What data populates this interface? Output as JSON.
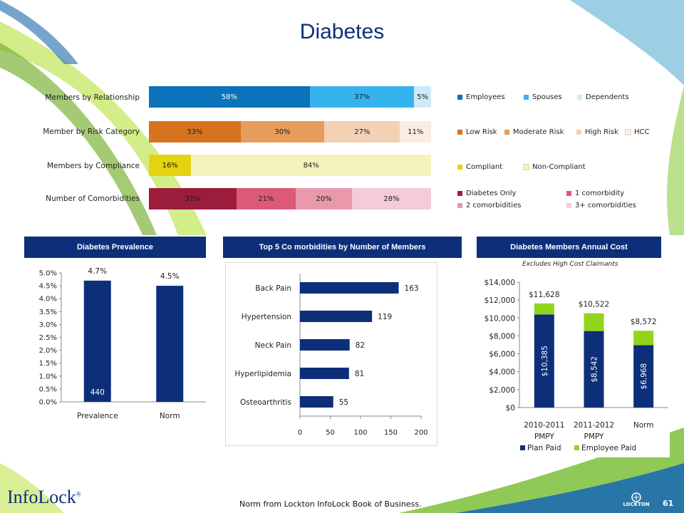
{
  "title": "Diabetes",
  "chart_data": [
    {
      "type": "bar",
      "orientation": "horizontal-stacked-100",
      "rows": [
        {
          "label": "Members by Relationship",
          "segments": [
            {
              "name": "Employees",
              "value": 58,
              "text": "58%",
              "color": "#0b73bb"
            },
            {
              "name": "Spouses",
              "value": 37,
              "text": "37%",
              "color": "#35b3ef"
            },
            {
              "name": "Dependents",
              "value": 5,
              "text": "5%",
              "color": "#cdeaf8"
            }
          ]
        },
        {
          "label": "Member by Risk Category",
          "segments": [
            {
              "name": "Low Risk",
              "value": 33,
              "text": "33%",
              "color": "#d7731f"
            },
            {
              "name": "Moderate Risk",
              "value": 30,
              "text": "30%",
              "color": "#e69c5b"
            },
            {
              "name": "High Risk",
              "value": 27,
              "text": "27%",
              "color": "#f3d1b4"
            },
            {
              "name": "HCC",
              "value": 11,
              "text": "11%",
              "color": "#fbece0"
            }
          ]
        },
        {
          "label": "Members by Compliance",
          "segments": [
            {
              "name": "Compliant",
              "value": 16,
              "text": "16%",
              "color": "#e4d213"
            },
            {
              "name": "Non-Compliant",
              "value": 84,
              "text": "84%",
              "color": "#f6f2bd"
            }
          ]
        },
        {
          "label": "Number of Comorbidities",
          "segments": [
            {
              "name": "Diabetes Only",
              "value": 32,
              "text": "32%",
              "color": "#9b1d3b"
            },
            {
              "name": "1 comorbidity",
              "value": 21,
              "text": "21%",
              "color": "#dc5a78"
            },
            {
              "name": "2 comorbidities",
              "value": 20,
              "text": "20%",
              "color": "#e999ab"
            },
            {
              "name": "3+ comorbidities",
              "value": 28,
              "text": "28%",
              "color": "#f4cbd6"
            }
          ]
        }
      ]
    },
    {
      "type": "bar",
      "title": "Diabetes Prevalence",
      "categories": [
        "Prevalence",
        "Norm"
      ],
      "values": [
        4.7,
        4.5
      ],
      "value_labels": [
        "4.7%",
        "4.5%"
      ],
      "inner_label": "440",
      "ylim": [
        0,
        5
      ],
      "yticks": [
        "0.0%",
        "0.5%",
        "1.0%",
        "1.5%",
        "2.0%",
        "2.5%",
        "3.0%",
        "3.5%",
        "4.0%",
        "4.5%",
        "5.0%"
      ],
      "color": "#0d2f7a"
    },
    {
      "type": "bar",
      "orientation": "horizontal",
      "title": "Top 5 Co morbidities by Number of Members",
      "categories": [
        "Back Pain",
        "Hypertension",
        "Neck Pain",
        "Hyperlipidemia",
        "Osteoarthritis"
      ],
      "values": [
        163,
        119,
        82,
        81,
        55
      ],
      "xlim": [
        0,
        200
      ],
      "xticks": [
        "0",
        "50",
        "100",
        "150",
        "200"
      ],
      "color": "#0d2f7a"
    },
    {
      "type": "bar",
      "orientation": "vertical-stacked",
      "title": "Diabetes Members Annual Cost",
      "subtitle": "Excludes High Cost Claimants",
      "categories": [
        "2010-2011 PMPY",
        "2011-2012 PMPY",
        "Norm"
      ],
      "category_lines": [
        [
          "2010-2011",
          "PMPY"
        ],
        [
          "2011-2012",
          "PMPY"
        ],
        [
          "Norm",
          ""
        ]
      ],
      "series": [
        {
          "name": "Plan Paid",
          "values": [
            10385,
            8542,
            6968
          ],
          "labels": [
            "$10,385",
            "$8,542",
            "$6,968"
          ],
          "color": "#0d2f7a"
        },
        {
          "name": "Employee Paid",
          "values": [
            1243,
            1980,
            1604
          ],
          "color": "#92d41c"
        }
      ],
      "totals": [
        11628,
        10522,
        8572
      ],
      "total_labels": [
        "$11,628",
        "$10,522",
        "$8,572"
      ],
      "ylim": [
        0,
        14000
      ],
      "yticks": [
        "$0",
        "$2,000",
        "$4,000",
        "$6,000",
        "$8,000",
        "$10,000",
        "$12,000",
        "$14,000"
      ]
    }
  ],
  "footer": {
    "note": "Norm from Lockton InfoLock Book of Business.",
    "logo": "InfoLock",
    "logo_mark": "®",
    "page": "61",
    "brand": "LOCKTON"
  },
  "colors": {
    "navy": "#0d2f7a",
    "green_accent": "#92d41c"
  }
}
